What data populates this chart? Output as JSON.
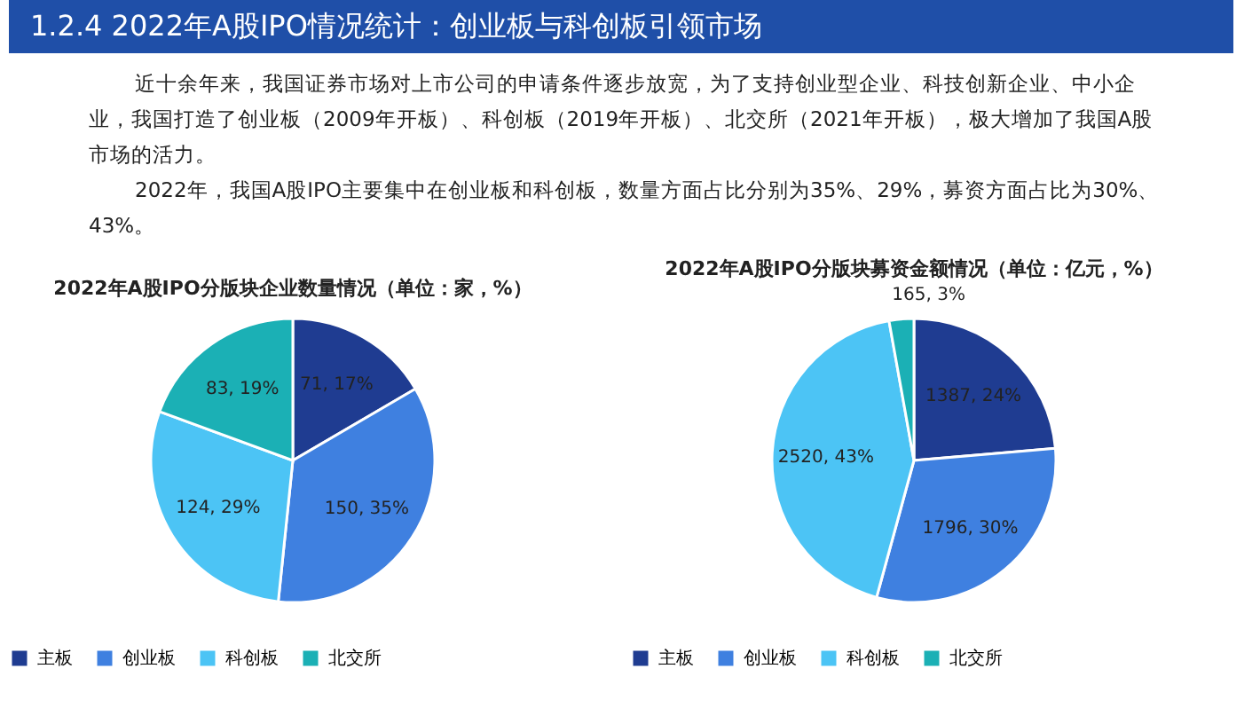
{
  "chart_data": [
    {
      "type": "other",
      "title": "1.2.4 2022年A股IPO情况统计：创业板与科创板引领市场",
      "annotations": [
        "近十余年来，我国证券市场对上市公司的申请条件逐步放宽，为了支持创业型企业、科技创新企业、中小企",
        "业，我国打造了创业板（2009年开板）、科创板（2019年开板）、北交所（2021年开板），极大增加了我国A股",
        "市场的活力。",
        "2022年，我国A股IPO主要集中在创业板和科创板，数量方面占比分别为35%、29%，募资方面占比为30%、",
        "43%。"
      ]
    },
    {
      "type": "pie",
      "title": "2022年A股IPO分版块企业数量情况（单位：家，%）",
      "categories": [
        "主板",
        "创业板",
        "科创板",
        "北交所"
      ],
      "values": [
        71,
        150,
        124,
        83
      ],
      "colors": [
        "#1f3c91",
        "#3f80e0",
        "#4cc4f5",
        "#1bb0b5"
      ],
      "value_labels": [
        "71, 17%",
        "150, 35%",
        "124, 29%",
        "83, 19%"
      ],
      "legend": "bottom"
    },
    {
      "type": "pie",
      "title": "2022年A股IPO分版块募资金额情况（单位：亿元，%）",
      "categories": [
        "主板",
        "创业板",
        "科创板",
        "北交所"
      ],
      "values": [
        1387,
        1796,
        2520,
        165
      ],
      "colors": [
        "#1f3c91",
        "#3f80e0",
        "#4cc4f5",
        "#1bb0b5"
      ],
      "value_labels": [
        "1387, 24%",
        "1796, 30%",
        "2520, 43%",
        "165, 3%"
      ],
      "legend": "bottom"
    }
  ]
}
